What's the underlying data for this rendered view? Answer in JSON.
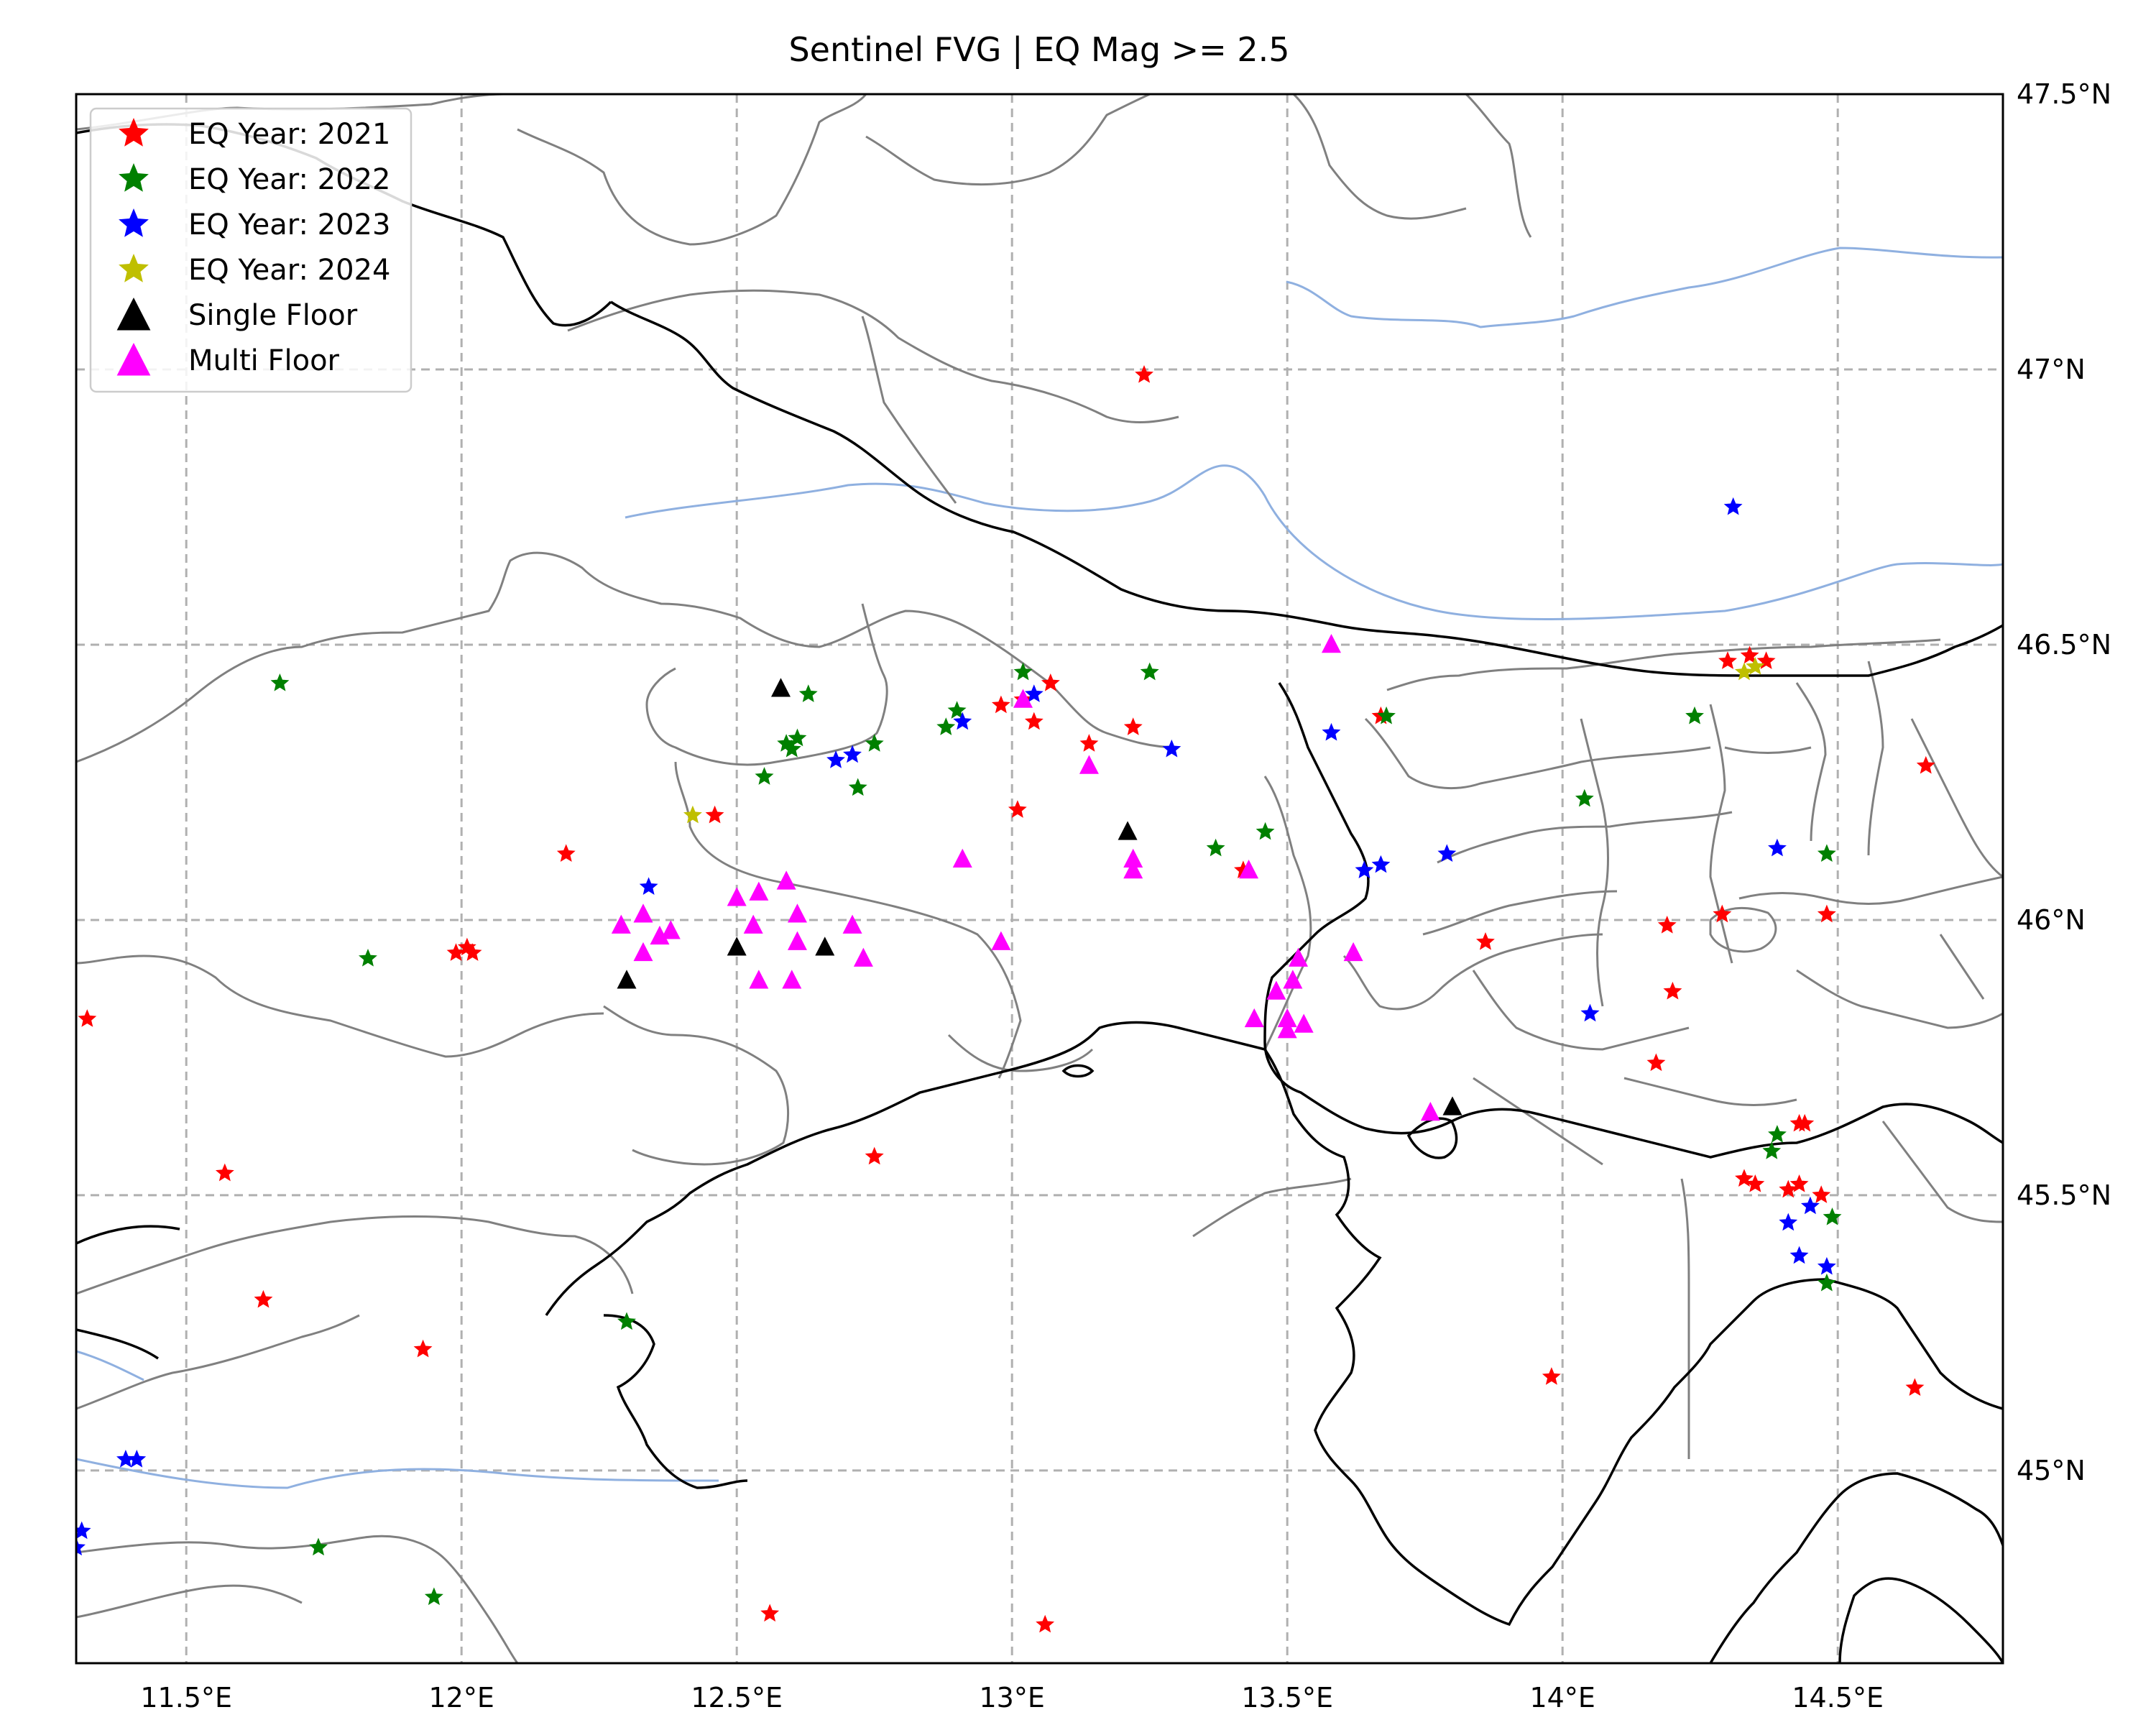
{
  "title": "Sentinel FVG | EQ Mag >= 2.5",
  "colors": {
    "eq_2021": "#ff0000",
    "eq_2022": "#008000",
    "eq_2023": "#0000ff",
    "eq_2024": "#bfbf00",
    "single_floor": "#000000",
    "multi_floor": "#ff00ff",
    "boundary": "#808080",
    "coast": "#000000",
    "river": "#8fb0e0",
    "grid": "#b0b0b0"
  },
  "legend": [
    {
      "label": "EQ Year: 2021",
      "marker": "star",
      "color": "#ff0000"
    },
    {
      "label": "EQ Year: 2022",
      "marker": "star",
      "color": "#008000"
    },
    {
      "label": "EQ Year: 2023",
      "marker": "star",
      "color": "#0000ff"
    },
    {
      "label": "EQ Year: 2024",
      "marker": "star",
      "color": "#bfbf00"
    },
    {
      "label": "Single Floor",
      "marker": "triangle",
      "color": "#000000"
    },
    {
      "label": "Multi Floor",
      "marker": "triangle",
      "color": "#ff00ff"
    }
  ],
  "x_ticks": [
    "11.5°E",
    "12°E",
    "12.5°E",
    "13°E",
    "13.5°E",
    "14°E",
    "14.5°E"
  ],
  "y_ticks": [
    "47.5°N",
    "47°N",
    "46.5°N",
    "46°N",
    "45.5°N",
    "45°N"
  ],
  "chart_data": {
    "type": "scatter",
    "title": "Sentinel FVG | EQ Mag >= 2.5",
    "xlim": [
      11.3,
      14.8
    ],
    "ylim": [
      44.65,
      47.5
    ],
    "x_tick_values": [
      11.5,
      12.0,
      12.5,
      13.0,
      13.5,
      14.0,
      14.5
    ],
    "y_tick_values": [
      45.0,
      45.5,
      46.0,
      46.5,
      47.0,
      47.5
    ],
    "grid": true,
    "legend_position": "top-left",
    "series": [
      {
        "name": "EQ Year: 2021",
        "marker": "star",
        "points": [
          [
            13.24,
            46.99
          ],
          [
            13.02,
            46.4
          ],
          [
            13.07,
            46.43
          ],
          [
            12.98,
            46.39
          ],
          [
            13.04,
            46.36
          ],
          [
            13.14,
            46.32
          ],
          [
            13.22,
            46.35
          ],
          [
            13.01,
            46.2
          ],
          [
            12.46,
            46.19
          ],
          [
            12.19,
            46.12
          ],
          [
            11.99,
            45.94
          ],
          [
            12.01,
            45.95
          ],
          [
            12.02,
            45.94
          ],
          [
            11.32,
            45.82
          ],
          [
            11.57,
            45.54
          ],
          [
            11.64,
            45.31
          ],
          [
            11.93,
            45.22
          ],
          [
            12.75,
            45.57
          ],
          [
            12.56,
            44.74
          ],
          [
            13.06,
            44.72
          ],
          [
            13.42,
            46.09
          ],
          [
            13.67,
            46.37
          ],
          [
            14.3,
            46.47
          ],
          [
            14.34,
            46.48
          ],
          [
            14.37,
            46.47
          ],
          [
            14.66,
            46.28
          ],
          [
            14.19,
            45.99
          ],
          [
            14.29,
            46.01
          ],
          [
            14.48,
            46.01
          ],
          [
            13.86,
            45.96
          ],
          [
            14.2,
            45.87
          ],
          [
            14.17,
            45.74
          ],
          [
            14.43,
            45.63
          ],
          [
            14.44,
            45.63
          ],
          [
            14.33,
            45.53
          ],
          [
            14.35,
            45.52
          ],
          [
            14.41,
            45.51
          ],
          [
            14.43,
            45.52
          ],
          [
            14.47,
            45.5
          ],
          [
            13.98,
            45.17
          ],
          [
            14.64,
            45.15
          ]
        ]
      },
      {
        "name": "EQ Year: 2022",
        "marker": "star",
        "points": [
          [
            11.67,
            46.43
          ],
          [
            11.83,
            45.93
          ],
          [
            12.3,
            45.27
          ],
          [
            11.74,
            44.86
          ],
          [
            11.95,
            44.77
          ],
          [
            12.55,
            46.26
          ],
          [
            12.59,
            46.32
          ],
          [
            12.61,
            46.33
          ],
          [
            12.6,
            46.31
          ],
          [
            12.63,
            46.41
          ],
          [
            12.72,
            46.24
          ],
          [
            12.75,
            46.32
          ],
          [
            12.88,
            46.35
          ],
          [
            12.9,
            46.38
          ],
          [
            13.02,
            46.45
          ],
          [
            13.25,
            46.45
          ],
          [
            13.37,
            46.13
          ],
          [
            13.46,
            46.16
          ],
          [
            13.68,
            46.37
          ],
          [
            14.04,
            46.22
          ],
          [
            14.24,
            46.37
          ],
          [
            14.48,
            46.12
          ],
          [
            14.38,
            45.58
          ],
          [
            14.39,
            45.61
          ],
          [
            14.49,
            45.46
          ],
          [
            14.48,
            45.34
          ]
        ]
      },
      {
        "name": "EQ Year: 2023",
        "marker": "star",
        "points": [
          [
            14.31,
            46.75
          ],
          [
            12.68,
            46.29
          ],
          [
            12.71,
            46.3
          ],
          [
            12.91,
            46.36
          ],
          [
            13.04,
            46.41
          ],
          [
            13.29,
            46.31
          ],
          [
            12.34,
            46.06
          ],
          [
            13.58,
            46.34
          ],
          [
            13.64,
            46.09
          ],
          [
            13.67,
            46.1
          ],
          [
            13.79,
            46.12
          ],
          [
            14.05,
            45.83
          ],
          [
            14.39,
            46.13
          ],
          [
            14.41,
            45.45
          ],
          [
            14.45,
            45.48
          ],
          [
            14.43,
            45.39
          ],
          [
            14.48,
            45.37
          ],
          [
            11.39,
            45.02
          ],
          [
            11.41,
            45.02
          ],
          [
            11.31,
            44.89
          ],
          [
            11.3,
            44.86
          ]
        ]
      },
      {
        "name": "EQ Year: 2024",
        "marker": "star",
        "points": [
          [
            12.42,
            46.19
          ],
          [
            14.33,
            46.45
          ],
          [
            14.35,
            46.46
          ]
        ]
      },
      {
        "name": "Single Floor",
        "marker": "triangle",
        "points": [
          [
            12.58,
            46.42
          ],
          [
            12.5,
            45.95
          ],
          [
            12.66,
            45.95
          ],
          [
            12.3,
            45.89
          ],
          [
            13.21,
            46.16
          ],
          [
            13.8,
            45.66
          ]
        ]
      },
      {
        "name": "Multi Floor",
        "marker": "triangle",
        "points": [
          [
            13.58,
            46.5
          ],
          [
            13.02,
            46.4
          ],
          [
            13.14,
            46.28
          ],
          [
            12.91,
            46.11
          ],
          [
            12.5,
            46.04
          ],
          [
            12.54,
            46.05
          ],
          [
            12.59,
            46.07
          ],
          [
            12.33,
            46.01
          ],
          [
            12.29,
            45.99
          ],
          [
            12.36,
            45.97
          ],
          [
            12.38,
            45.98
          ],
          [
            12.33,
            45.94
          ],
          [
            12.53,
            45.99
          ],
          [
            12.61,
            46.01
          ],
          [
            12.61,
            45.96
          ],
          [
            12.71,
            45.99
          ],
          [
            12.73,
            45.93
          ],
          [
            12.54,
            45.89
          ],
          [
            12.6,
            45.89
          ],
          [
            12.98,
            45.96
          ],
          [
            13.22,
            46.11
          ],
          [
            13.22,
            46.09
          ],
          [
            13.43,
            46.09
          ],
          [
            13.52,
            45.93
          ],
          [
            13.62,
            45.94
          ],
          [
            13.51,
            45.89
          ],
          [
            13.48,
            45.87
          ],
          [
            13.44,
            45.82
          ],
          [
            13.5,
            45.82
          ],
          [
            13.53,
            45.81
          ],
          [
            13.5,
            45.8
          ],
          [
            13.76,
            45.65
          ]
        ]
      }
    ]
  }
}
